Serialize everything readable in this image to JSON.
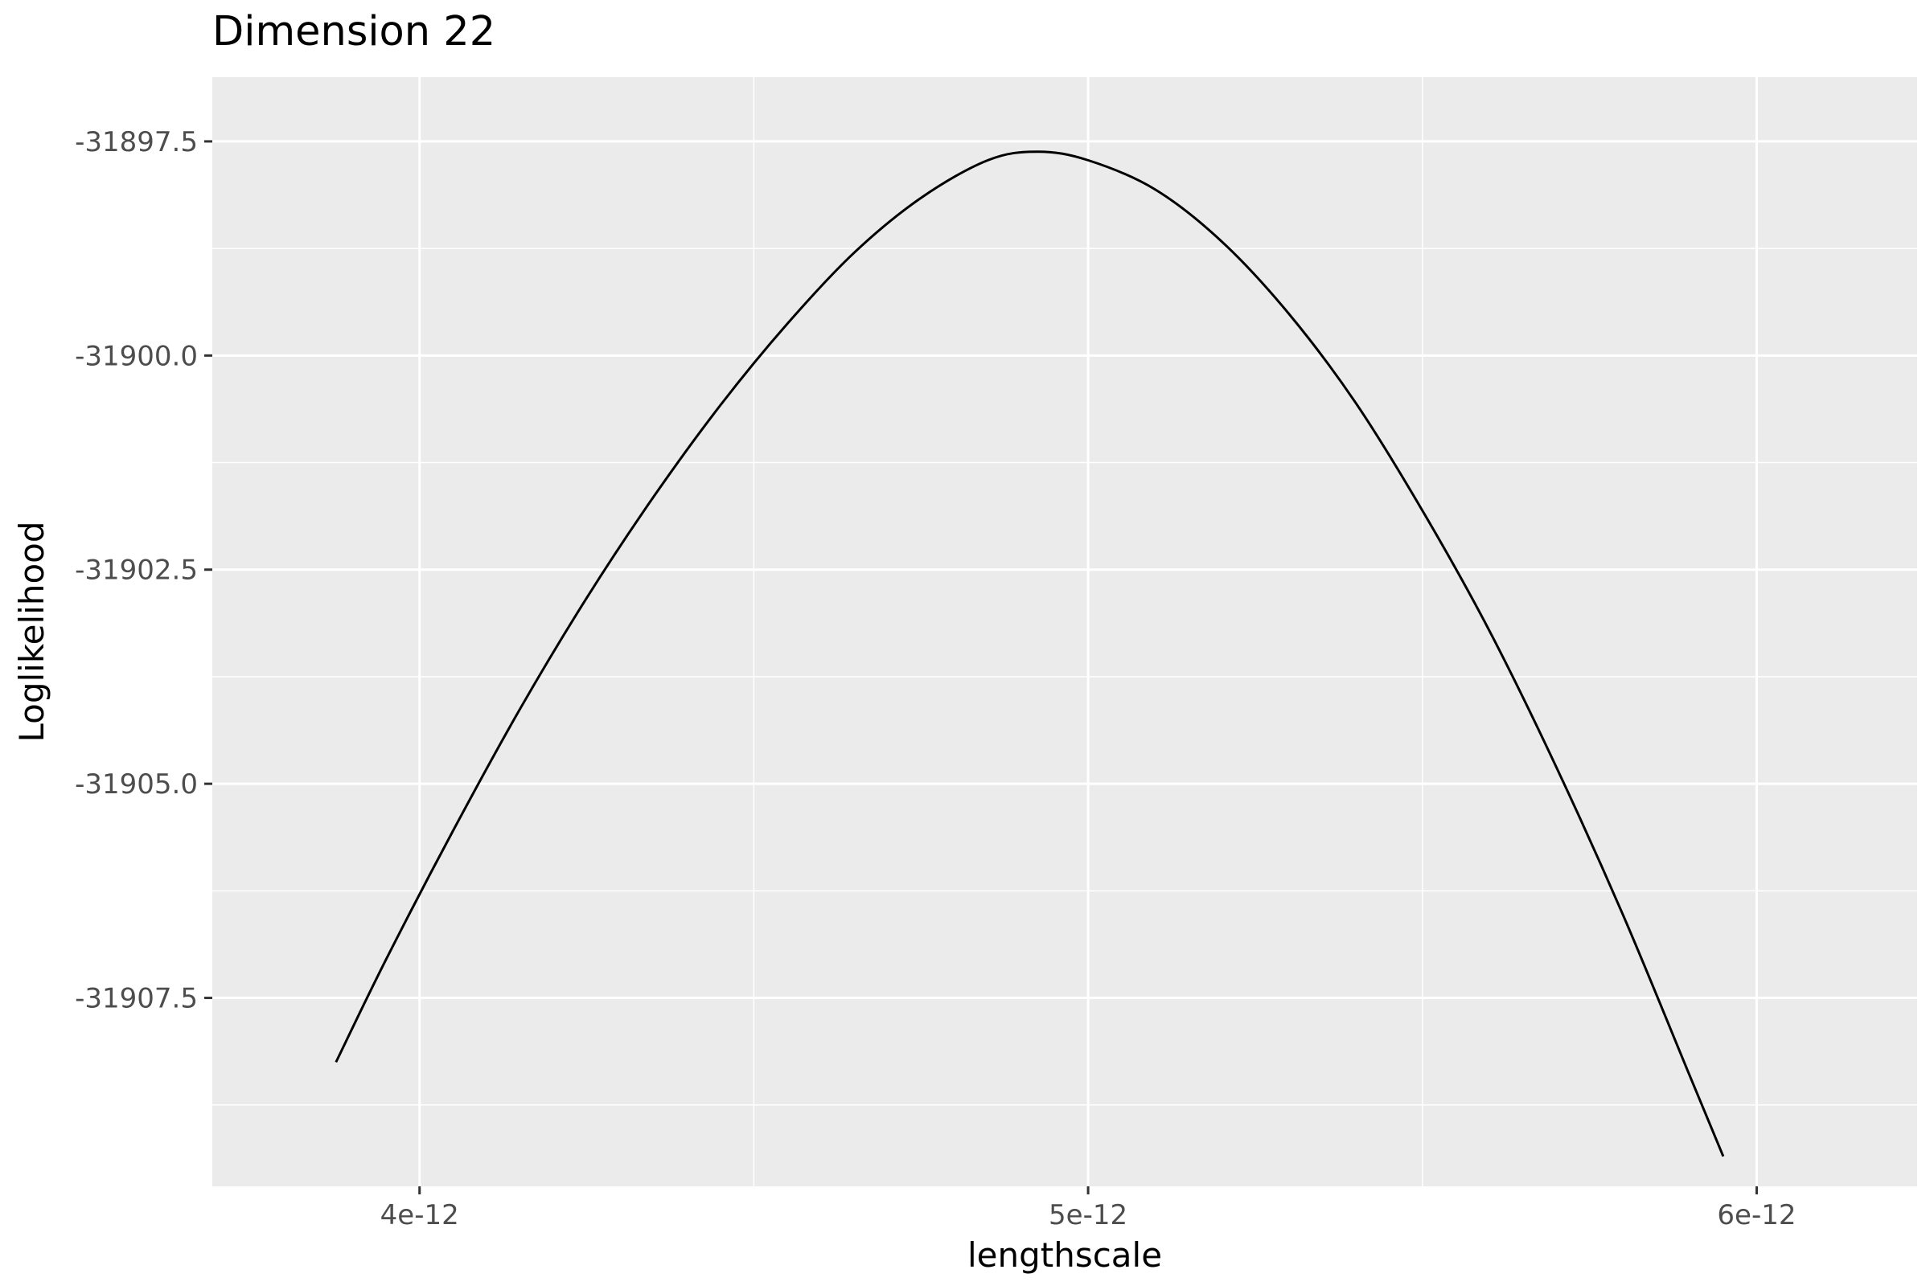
{
  "chart_data": {
    "type": "line",
    "title": "Dimension 22",
    "xlabel": "lengthscale",
    "ylabel": "Loglikelihood",
    "xlim": [
      3.69e-12,
      6.24e-12
    ],
    "ylim": [
      -31909.7,
      -31896.75
    ],
    "x_ticks": [
      {
        "value": 4e-12,
        "label": "4e-12"
      },
      {
        "value": 5e-12,
        "label": "5e-12"
      },
      {
        "value": 6e-12,
        "label": "6e-12"
      }
    ],
    "y_ticks": [
      {
        "value": -31897.5,
        "label": "-31897.5"
      },
      {
        "value": -31900.0,
        "label": "-31900.0"
      },
      {
        "value": -31902.5,
        "label": "-31902.5"
      },
      {
        "value": -31905.0,
        "label": "-31905.0"
      },
      {
        "value": -31907.5,
        "label": "-31907.5"
      }
    ],
    "grid": true,
    "series": [
      {
        "color": "#000000",
        "points": [
          [
            3.875e-12,
            -31908.25
          ],
          [
            3.95e-12,
            -31907.05
          ],
          [
            4.05e-12,
            -31905.55
          ],
          [
            4.15e-12,
            -31904.13
          ],
          [
            4.25e-12,
            -31902.83
          ],
          [
            4.35e-12,
            -31901.65
          ],
          [
            4.45e-12,
            -31900.58
          ],
          [
            4.55e-12,
            -31899.63
          ],
          [
            4.65e-12,
            -31898.8
          ],
          [
            4.75e-12,
            -31898.16
          ],
          [
            4.85e-12,
            -31897.72
          ],
          [
            4.925e-12,
            -31897.62
          ],
          [
            5e-12,
            -31897.72
          ],
          [
            5.1e-12,
            -31898.06
          ],
          [
            5.2e-12,
            -31898.67
          ],
          [
            5.3e-12,
            -31899.51
          ],
          [
            5.4e-12,
            -31900.55
          ],
          [
            5.5e-12,
            -31901.81
          ],
          [
            5.6e-12,
            -31903.21
          ],
          [
            5.7e-12,
            -31904.8
          ],
          [
            5.8e-12,
            -31906.53
          ],
          [
            5.9e-12,
            -31908.41
          ],
          [
            5.95e-12,
            -31909.35
          ]
        ]
      }
    ],
    "legend": "none"
  }
}
